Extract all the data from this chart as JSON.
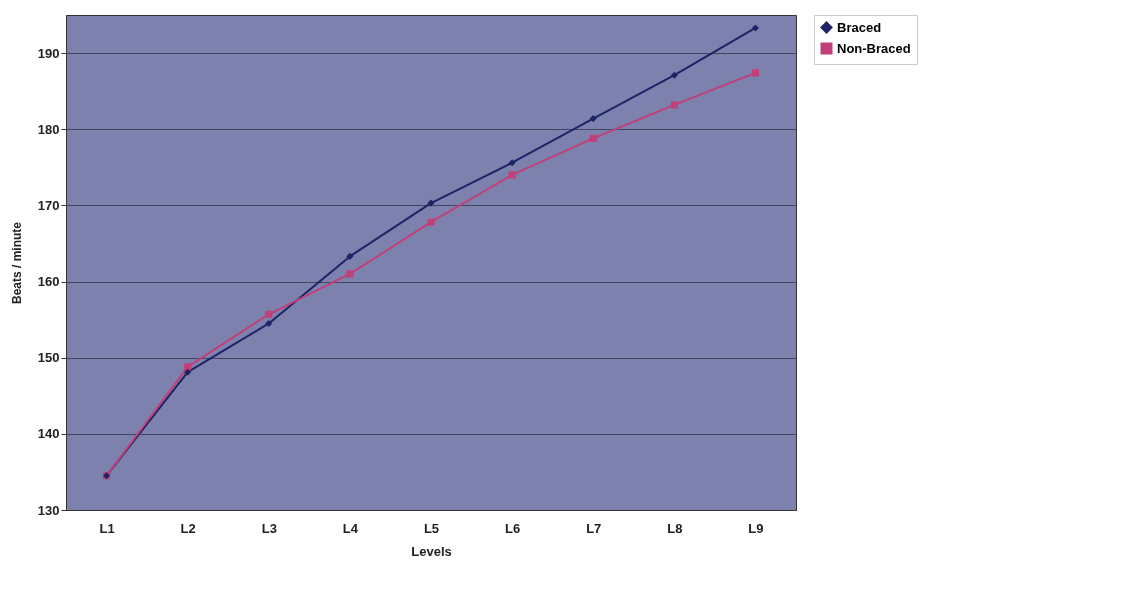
{
  "chart_data": {
    "type": "line",
    "xlabel": "Levels",
    "ylabel": "Beats / minute",
    "categories": [
      "L1",
      "L2",
      "L3",
      "L4",
      "L5",
      "L6",
      "L7",
      "L8",
      "L9"
    ],
    "series": [
      {
        "name": "Braced",
        "color": "#1c2466",
        "marker": "diamond",
        "values": [
          134.5,
          148.1,
          154.5,
          163.3,
          170.3,
          175.6,
          181.4,
          187.1,
          193.3
        ]
      },
      {
        "name": "Non-Braced",
        "color": "#c23f78",
        "marker": "square",
        "values": [
          134.5,
          148.8,
          155.7,
          161,
          167.8,
          174,
          178.8,
          183.2,
          187.4
        ]
      }
    ],
    "ylim": [
      130,
      195
    ],
    "yticks": [
      130,
      140,
      150,
      160,
      170,
      180,
      190
    ],
    "grid": "y",
    "legend": "right"
  }
}
